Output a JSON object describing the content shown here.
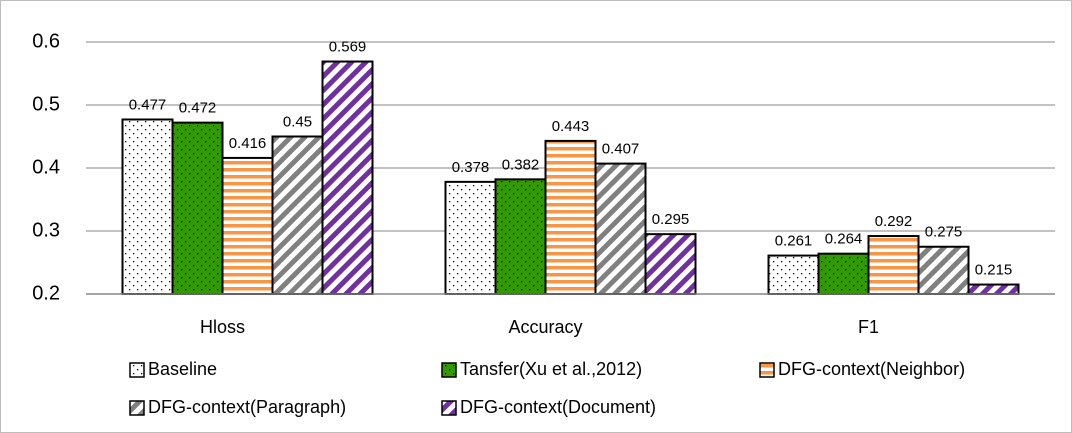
{
  "chart_data": {
    "type": "bar",
    "categories": [
      "Hloss",
      "Accuracy",
      "F1"
    ],
    "series": [
      {
        "name": "Baseline",
        "color": "#ffffff",
        "pattern": "dots",
        "values": [
          0.477,
          0.378,
          0.261
        ]
      },
      {
        "name": "Tansfer(Xu et al.,2012)",
        "color": "#339900",
        "pattern": "dots",
        "values": [
          0.472,
          0.382,
          0.264
        ]
      },
      {
        "name": "DFG-context(Neighbor)",
        "color": "#f79646",
        "pattern": "hstripes",
        "values": [
          0.416,
          0.443,
          0.292
        ]
      },
      {
        "name": "DFG-context(Paragraph)",
        "color": "#808080",
        "pattern": "diagonal",
        "values": [
          0.45,
          0.407,
          0.275
        ]
      },
      {
        "name": "DFG-context(Document)",
        "color": "#7030a0",
        "pattern": "diagonal",
        "values": [
          0.569,
          0.295,
          0.215
        ]
      }
    ],
    "ylim": [
      0.2,
      0.6
    ],
    "yticks": [
      0.2,
      0.3,
      0.4,
      0.5,
      0.6
    ],
    "grid": true,
    "legend": "bottom"
  }
}
